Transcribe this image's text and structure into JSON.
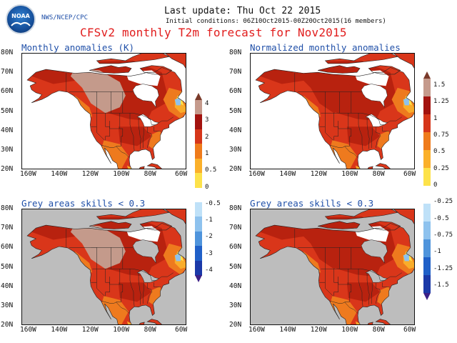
{
  "header": {
    "agency": "NWS/NCEP/CPC",
    "logo_text": "NOAA",
    "last_update": "Last update: Thu Oct 22 2015",
    "initial_conditions": "Initial conditions: 06Z10Oct2015-00Z20Oct2015(16 members)",
    "title": "CFSv2 monthly T2m forecast for Nov2015"
  },
  "panels": [
    {
      "title": "Monthly anomalies (K)",
      "grey_mask": false
    },
    {
      "title": "Normalized monthly anomalies",
      "grey_mask": false
    },
    {
      "title": "Grey areas skills < 0.3",
      "grey_mask": true
    },
    {
      "title": "Grey areas skills < 0.3",
      "grey_mask": true
    }
  ],
  "axes": {
    "lat_labels": [
      "80N",
      "70N",
      "60N",
      "50N",
      "40N",
      "30N",
      "20N"
    ],
    "lon_labels": [
      "160W",
      "140W",
      "120W",
      "100W",
      "80W",
      "60W"
    ],
    "lon_range": [
      -170,
      -60
    ],
    "lat_range": [
      20,
      80
    ]
  },
  "colorbars": {
    "left": {
      "labels": [
        "4",
        "3",
        "2",
        "1",
        "0.5",
        "0",
        "-0.5",
        "-1",
        "-2",
        "-3",
        "-4"
      ]
    },
    "right": {
      "labels": [
        "1.5",
        "1.25",
        "1",
        "0.75",
        "0.5",
        "0.25",
        "0",
        "-0.25",
        "-0.5",
        "-0.75",
        "-1",
        "-1.25",
        "-1.5"
      ]
    },
    "colors": [
      "#7a3a2a",
      "#c59a8c",
      "#a3130f",
      "#d6361a",
      "#ef7b1b",
      "#fbb02a",
      "#fde24a",
      "#ffffff",
      "#bfe1f8",
      "#8ec2ee",
      "#4f94dc",
      "#2060c8",
      "#1b39a8",
      "#3b1f86"
    ]
  },
  "palette": {
    "land_dark_red": "#b8220f",
    "land_red": "#d9361a",
    "land_orange": "#ee7a1e",
    "land_light_orange": "#f9ad2b",
    "land_yellow": "#fde24a",
    "land_brown": "#c49a8b",
    "light_blue": "#8ec2ee",
    "grey_mask": "#bdbdbd",
    "ocean": "#ffffff"
  }
}
